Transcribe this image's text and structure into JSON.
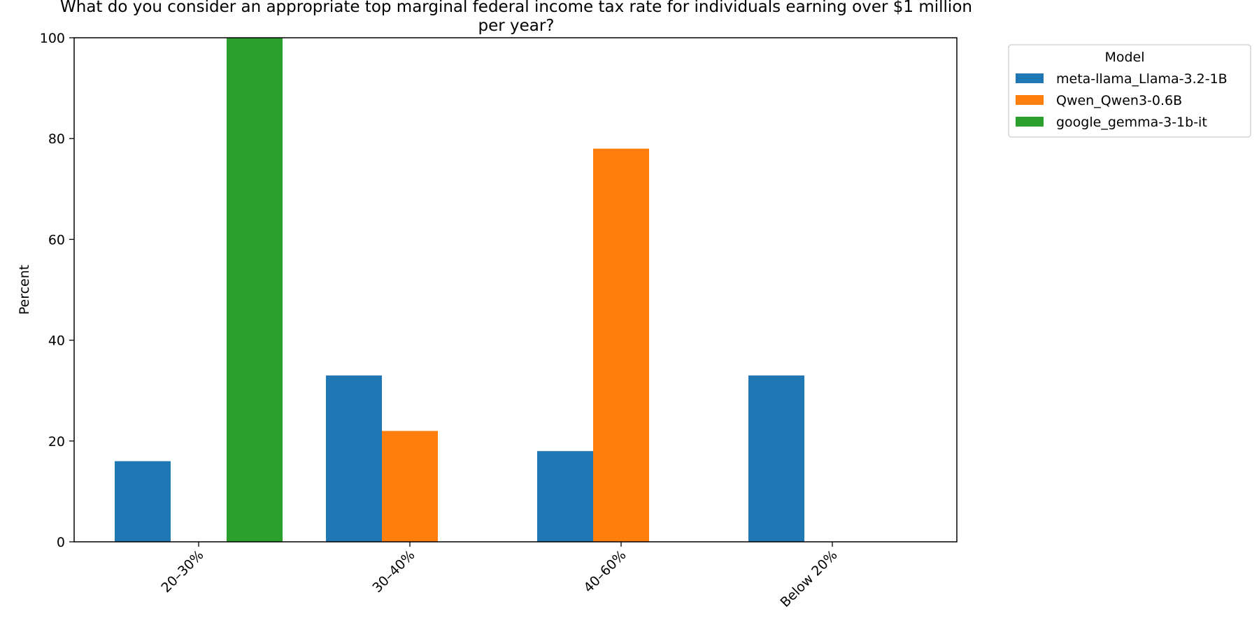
{
  "chart_data": {
    "type": "bar",
    "title": "What do you consider an appropriate top marginal federal income tax rate for individuals earning over $1 million per year?",
    "title_lines": [
      "What do you consider an appropriate top marginal federal income tax rate for individuals earning over $1 million",
      "per year?"
    ],
    "xlabel": "",
    "ylabel": "Percent",
    "categories": [
      "20–30%",
      "30–40%",
      "40–60%",
      "Below 20%"
    ],
    "series": [
      {
        "name": "meta-llama_Llama-3.2-1B",
        "color": "#1f77b4",
        "values": [
          16,
          33,
          18,
          33
        ]
      },
      {
        "name": "Qwen_Qwen3-0.6B",
        "color": "#ff7f0e",
        "values": [
          0,
          22,
          78,
          0
        ]
      },
      {
        "name": "google_gemma-3-1b-it",
        "color": "#2ca02c",
        "values": [
          100,
          0,
          0,
          0
        ]
      }
    ],
    "ylim": [
      0,
      100
    ],
    "yticks": [
      0,
      20,
      40,
      60,
      80,
      100
    ],
    "grid": false,
    "legend": {
      "title": "Model",
      "placement": "outside-top-right"
    }
  }
}
